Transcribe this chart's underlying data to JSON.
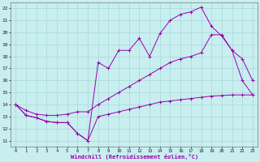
{
  "xlabel": "Windchill (Refroidissement éolien,°C)",
  "bg_color": "#c8eef0",
  "grid_color": "#a8d8d8",
  "line_color": "#9900aa",
  "xlim": [
    -0.5,
    23.5
  ],
  "ylim": [
    10.5,
    22.5
  ],
  "xticks": [
    0,
    1,
    2,
    3,
    4,
    5,
    6,
    7,
    8,
    9,
    10,
    11,
    12,
    13,
    14,
    15,
    16,
    17,
    18,
    19,
    20,
    21,
    22,
    23
  ],
  "yticks": [
    11,
    12,
    13,
    14,
    15,
    16,
    17,
    18,
    19,
    20,
    21,
    22
  ],
  "line1_x": [
    0,
    1,
    2,
    3,
    4,
    5,
    6,
    7,
    8,
    9,
    10,
    11,
    12,
    13,
    14,
    15,
    16,
    17,
    18,
    19,
    20,
    21,
    22,
    23
  ],
  "line1_y": [
    14.0,
    13.1,
    12.9,
    12.6,
    12.5,
    12.5,
    11.6,
    11.0,
    17.5,
    17.0,
    18.5,
    18.5,
    19.5,
    18.0,
    19.9,
    21.0,
    21.5,
    21.7,
    22.1,
    20.5,
    19.7,
    18.5,
    16.0,
    14.8
  ],
  "line2_x": [
    0,
    1,
    2,
    3,
    4,
    5,
    6,
    7,
    8,
    9,
    10,
    11,
    12,
    13,
    14,
    15,
    16,
    17,
    18,
    19,
    20,
    21,
    22,
    23
  ],
  "line2_y": [
    14.0,
    13.5,
    13.2,
    13.1,
    13.1,
    13.2,
    13.4,
    13.4,
    14.0,
    14.5,
    15.0,
    15.5,
    16.0,
    16.5,
    17.0,
    17.5,
    17.8,
    18.0,
    18.3,
    19.8,
    19.8,
    18.5,
    17.8,
    16.0
  ],
  "line3_x": [
    0,
    1,
    2,
    3,
    4,
    5,
    6,
    7,
    8,
    9,
    10,
    11,
    12,
    13,
    14,
    15,
    16,
    17,
    18,
    19,
    20,
    21,
    22,
    23
  ],
  "line3_y": [
    14.0,
    13.1,
    12.9,
    12.6,
    12.5,
    12.5,
    11.6,
    11.0,
    13.0,
    13.2,
    13.4,
    13.6,
    13.8,
    14.0,
    14.2,
    14.3,
    14.4,
    14.5,
    14.6,
    14.7,
    14.75,
    14.8,
    14.8,
    14.8
  ]
}
